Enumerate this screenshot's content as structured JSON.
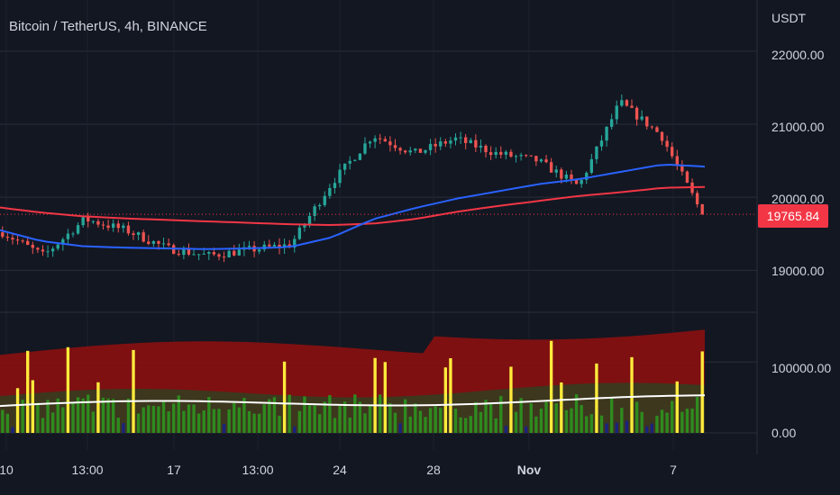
{
  "header": {
    "title": "Bitcoin / TetherUS, 4h, BINANCE"
  },
  "axis": {
    "currency": "USDT",
    "price_ticks": [
      "22000.00",
      "21000.00",
      "20000.00",
      "19000.00"
    ],
    "volume_ticks": [
      "100000.00",
      "0.00"
    ],
    "x_ticks": [
      {
        "label": "10",
        "bold": false
      },
      {
        "label": "13:00",
        "bold": false
      },
      {
        "label": "17",
        "bold": false
      },
      {
        "label": "13:00",
        "bold": false
      },
      {
        "label": "24",
        "bold": false
      },
      {
        "label": "28",
        "bold": false
      },
      {
        "label": "Nov",
        "bold": true
      },
      {
        "label": "7",
        "bold": false
      }
    ]
  },
  "last_price": "19765.84",
  "colors": {
    "background": "#131722",
    "grid": "#2a2e39",
    "up": "#26a69a",
    "down": "#ef5350",
    "ma_fast": "#2962ff",
    "ma_slow": "#f23645",
    "badge": "#f23645",
    "volume_band": "#8b1010",
    "volume_band_mid": "#3a3a20",
    "volume_spike": "#ffeb3b",
    "volume_normal": "#2e8b1e",
    "volume_low": "#1a237e"
  },
  "chart_data": {
    "type": "candlestick",
    "symbol": "Bitcoin / TetherUS",
    "interval": "4h",
    "exchange": "BINANCE",
    "price_range": [
      18450,
      22700
    ],
    "last_price": 19765.84,
    "anchors": [
      {
        "label": "10",
        "close": 19520
      },
      {
        "label": "13:00",
        "close": 19200
      },
      {
        "label": "",
        "close": 19700
      },
      {
        "label": "17",
        "close": 19550
      },
      {
        "label": "",
        "close": 19300
      },
      {
        "label": "13:00",
        "close": 19200
      },
      {
        "label": "",
        "close": 19280
      },
      {
        "label": "24",
        "close": 19350
      },
      {
        "label": "",
        "close": 20200
      },
      {
        "label": "",
        "close": 20850
      },
      {
        "label": "28",
        "close": 20600
      },
      {
        "label": "",
        "close": 20800
      },
      {
        "label": "",
        "close": 20600
      },
      {
        "label": "Nov",
        "close": 20500
      },
      {
        "label": "",
        "close": 20150
      },
      {
        "label": "",
        "close": 21300
      },
      {
        "label": "7",
        "close": 20850
      },
      {
        "label": "",
        "close": 19765.84
      }
    ],
    "ma_fast": [
      19550,
      19400,
      19330,
      19310,
      19300,
      19290,
      19300,
      19320,
      19450,
      19700,
      19850,
      19980,
      20080,
      20180,
      20250,
      20350,
      20450,
      20420
    ],
    "ma_slow": [
      19860,
      19790,
      19740,
      19710,
      19690,
      19670,
      19650,
      19630,
      19620,
      19640,
      19700,
      19800,
      19880,
      19950,
      20020,
      20070,
      20130,
      20140
    ],
    "volume_range": [
      0,
      160000
    ],
    "volume_ticks": [
      100000,
      0
    ]
  }
}
